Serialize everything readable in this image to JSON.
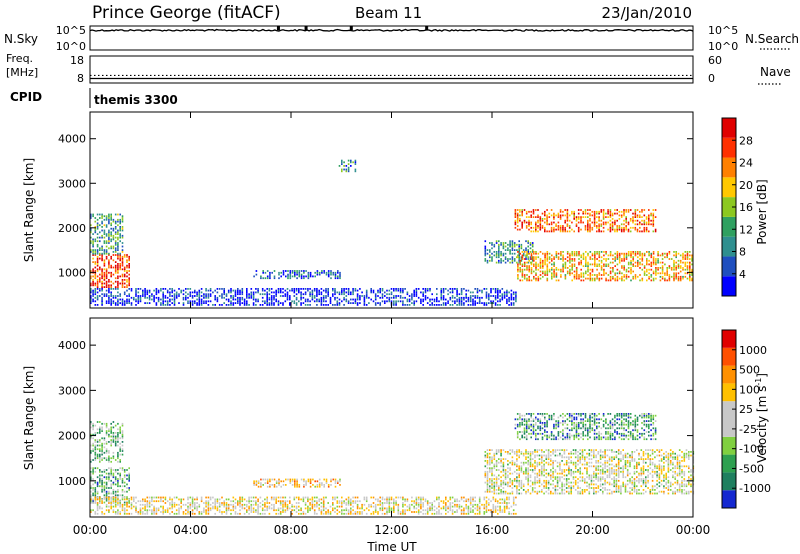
{
  "header": {
    "station": "Prince George (fitACF)",
    "beam": "Beam 11",
    "date": "23/Jan/2010"
  },
  "chart_data": [
    {
      "type": "line",
      "name": "sky-noise-panel",
      "left_label": "N.Sky",
      "right_label": "N.Search",
      "left_ticks": [
        "10^5",
        "10^0"
      ],
      "right_ticks": [
        "10^5",
        "10^0"
      ],
      "trace_level": 0.82,
      "spikes_hour": [
        7.5,
        8.6,
        10.4,
        13.4
      ]
    },
    {
      "type": "line",
      "name": "frequency-nave-panel",
      "left_label_lines": [
        "Freq.",
        "[MHz]"
      ],
      "right_label": "Nave",
      "left_ticks": [
        "18",
        "8"
      ],
      "right_ticks": [
        "60",
        "0"
      ],
      "freq_mhz": 10.8,
      "nave": 10
    },
    {
      "type": "text",
      "name": "cpid-panel",
      "label": "CPID",
      "value": "themis 3300"
    },
    {
      "type": "heatmap",
      "name": "power-panel",
      "ylabel": "Slant Range [km]",
      "yticks": [
        "1000",
        "2000",
        "3000",
        "4000"
      ],
      "ylim": [
        200,
        4600
      ],
      "colorbar_label": "Power [dB]",
      "colorbar_ticks": [
        "4",
        "8",
        "12",
        "16",
        "20",
        "24",
        "28"
      ],
      "colors": [
        "#0000ff",
        "#1f4fbf",
        "#2f8f8f",
        "#2fa060",
        "#8cc820",
        "#ffc800",
        "#ff8000",
        "#ff3000",
        "#e00000"
      ],
      "regions": [
        {
          "t0": 0.0,
          "t1": 1.6,
          "r0": 650,
          "r1": 1400,
          "level": 0.85
        },
        {
          "t0": 0.0,
          "t1": 1.3,
          "r0": 1400,
          "r1": 2300,
          "level": 0.35
        },
        {
          "t0": 6.5,
          "t1": 10.0,
          "r0": 850,
          "r1": 1050,
          "level": 0.2
        },
        {
          "t0": 9.9,
          "t1": 10.6,
          "r0": 3250,
          "r1": 3500,
          "level": 0.3
        },
        {
          "t0": 15.7,
          "t1": 17.6,
          "r0": 1200,
          "r1": 1700,
          "level": 0.3
        },
        {
          "t0": 16.9,
          "t1": 22.5,
          "r0": 1900,
          "r1": 2400,
          "level": 0.75
        },
        {
          "t0": 17.0,
          "t1": 24.0,
          "r0": 800,
          "r1": 1450,
          "level": 0.65
        },
        {
          "t0": 0.0,
          "t1": 17.0,
          "r0": 250,
          "r1": 650,
          "level": 0.1
        }
      ]
    },
    {
      "type": "heatmap",
      "name": "velocity-panel",
      "ylabel": "Slant Range [km]",
      "yticks": [
        "1000",
        "2000",
        "3000",
        "4000"
      ],
      "ylim": [
        200,
        4600
      ],
      "colorbar_label": "Velocity [m s",
      "colorbar_label_sup": "-1",
      "colorbar_label_end": "]",
      "colorbar_ticks": [
        "1000",
        "500",
        "100",
        "25",
        "-25",
        "-100",
        "-500",
        "-1000"
      ],
      "colors": [
        "#1428d0",
        "#1f7f5f",
        "#2ea050",
        "#80d040",
        "#c8c8c8",
        "#c8c8c8",
        "#ffc000",
        "#ff9000",
        "#ff5000",
        "#e00000"
      ],
      "regions": [
        {
          "t0": 0.0,
          "t1": 1.6,
          "r0": 500,
          "r1": 1300,
          "level": 0.3
        },
        {
          "t0": 0.0,
          "t1": 1.3,
          "r0": 1400,
          "r1": 2300,
          "level": 0.35
        },
        {
          "t0": 6.5,
          "t1": 10.0,
          "r0": 850,
          "r1": 1050,
          "level": 0.6
        },
        {
          "t0": 15.7,
          "t1": 24.0,
          "r0": 700,
          "r1": 1700,
          "level": 0.5
        },
        {
          "t0": 16.9,
          "t1": 22.5,
          "r0": 1900,
          "r1": 2500,
          "level": 0.25
        },
        {
          "t0": 0.0,
          "t1": 17.0,
          "r0": 250,
          "r1": 650,
          "level": 0.55
        }
      ]
    }
  ],
  "xaxis": {
    "label": "Time UT",
    "ticks": [
      "00:00",
      "04:00",
      "08:00",
      "12:00",
      "16:00",
      "20:00",
      "00:00"
    ],
    "xlim": [
      0,
      24
    ]
  }
}
